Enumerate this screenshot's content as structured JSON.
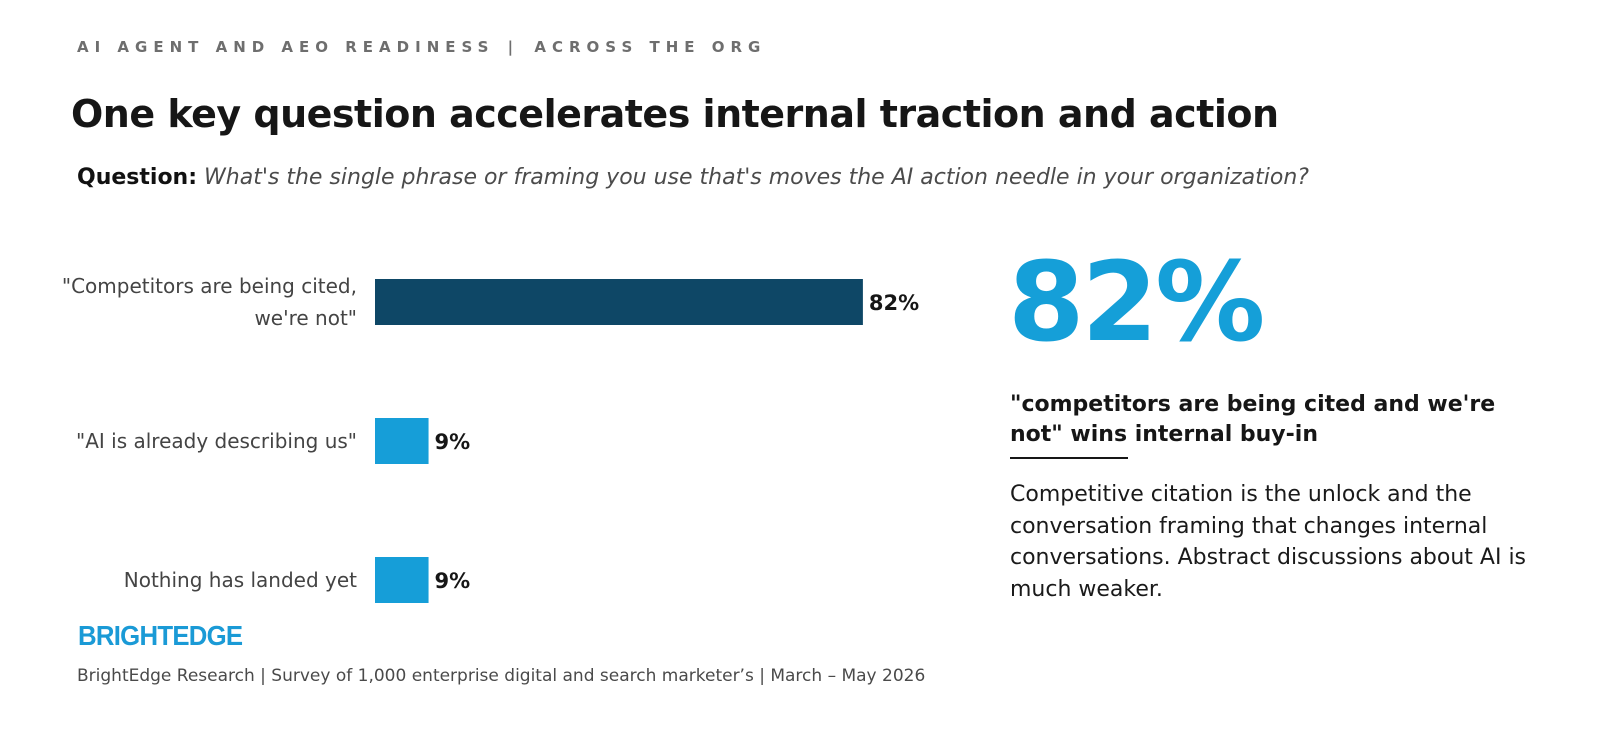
{
  "eyebrow": {
    "left": "AI AGENT AND AEO READINESS",
    "separator": "|",
    "right": "ACROSS THE ORG"
  },
  "title": "One key question accelerates internal traction and action",
  "question": {
    "label": "Question:",
    "text": "What's the single phrase or framing you use that's moves the AI action needle in your organization?"
  },
  "chart_data": {
    "type": "bar",
    "orientation": "horizontal",
    "categories": [
      [
        "\"Competitors are being cited,",
        "we're not\""
      ],
      [
        "\"AI is already describing us\""
      ],
      [
        "Nothing has landed yet"
      ]
    ],
    "values": [
      82,
      9,
      9
    ],
    "value_labels": [
      "82%",
      "9%",
      "9%"
    ],
    "bar_colors": [
      "#0e4766",
      "#169ed8",
      "#169ed8"
    ],
    "xlim": [
      0,
      100
    ],
    "grid": false,
    "legend": "none"
  },
  "callout": {
    "big_stat": "82%",
    "headline": "\"competitors are being cited and we're not\" wins internal buy-in",
    "body": "Competitive citation is the unlock and the conversation framing that changes internal conversations. Abstract discussions about AI is much weaker.",
    "stat_color": "#159fd8"
  },
  "logo": {
    "text": "BRIGHTEDGE",
    "color": "#1a9ad6"
  },
  "footer": "BrightEdge Research | Survey of 1,000 enterprise digital and search marketer’s | March – May 2026"
}
